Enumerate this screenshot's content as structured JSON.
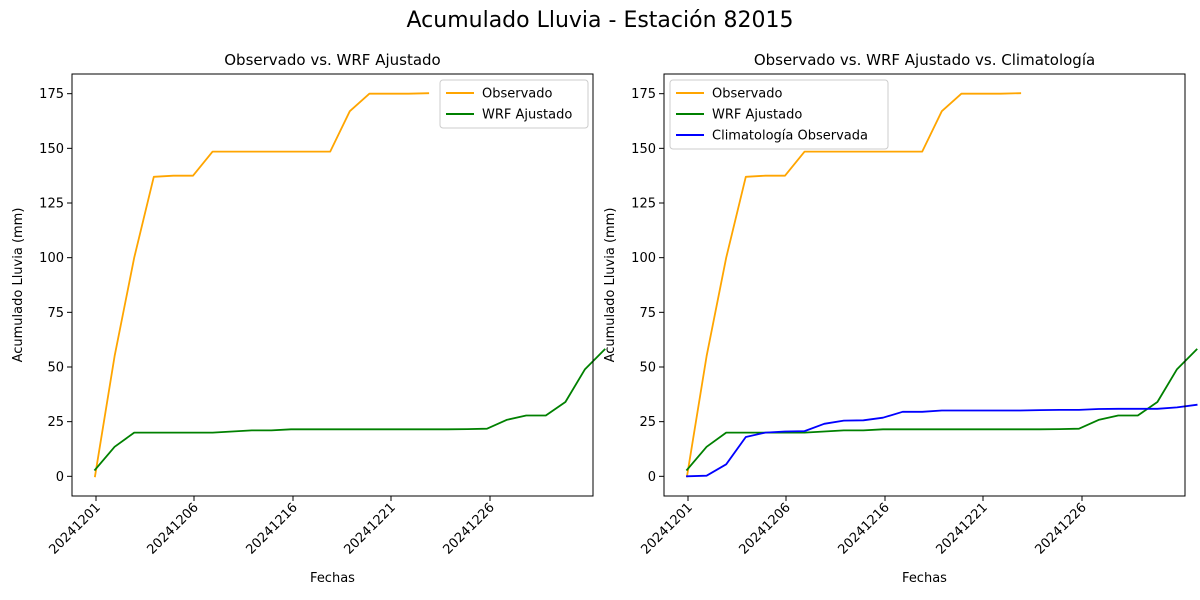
{
  "figure": {
    "title": "Acumulado Lluvia - Estación 82015"
  },
  "colors": {
    "Observado": "#ffa500",
    "WRF Ajustado": "#008000",
    "Climatología Observada": "#0000ff"
  },
  "chart_data": [
    {
      "type": "line",
      "title": "Observado vs. WRF Ajustado",
      "xlabel": "Fechas",
      "ylabel": "Acumulado Lluvia (mm)",
      "x_ticks": [
        "20241201",
        "20241206",
        "20241216",
        "20241221",
        "20241226"
      ],
      "y_ticks": [
        0,
        25,
        50,
        75,
        100,
        125,
        150,
        175
      ],
      "ylim": [
        -9,
        184
      ],
      "legend": "top-right",
      "grid": false,
      "series": [
        {
          "name": "Observado",
          "values": [
            0,
            55,
            100,
            137,
            137.5,
            137.5,
            148.5,
            148.5,
            148.5,
            148.5,
            148.5,
            148.5,
            148.5,
            167,
            175,
            175,
            175,
            175.2
          ]
        },
        {
          "name": "WRF Ajustado",
          "values": [
            3,
            13.5,
            20,
            20,
            20,
            20,
            20,
            20.5,
            21,
            21,
            21.5,
            21.5,
            21.5,
            21.5,
            21.5,
            21.5,
            21.5,
            21.5,
            21.5,
            21.6,
            21.8,
            25.8,
            27.8,
            27.8,
            34,
            49,
            58
          ]
        }
      ]
    },
    {
      "type": "line",
      "title": "Observado vs. WRF Ajustado vs. Climatología",
      "xlabel": "Fechas",
      "ylabel": "Acumulado Lluvia (mm)",
      "x_ticks": [
        "20241201",
        "20241206",
        "20241216",
        "20241221",
        "20241226"
      ],
      "y_ticks": [
        0,
        25,
        50,
        75,
        100,
        125,
        150,
        175
      ],
      "ylim": [
        -9,
        184
      ],
      "legend": "top-left",
      "grid": false,
      "series": [
        {
          "name": "Observado",
          "values": [
            0,
            55,
            100,
            137,
            137.5,
            137.5,
            148.5,
            148.5,
            148.5,
            148.5,
            148.5,
            148.5,
            148.5,
            167,
            175,
            175,
            175,
            175.2
          ]
        },
        {
          "name": "WRF Ajustado",
          "values": [
            3,
            13.5,
            20,
            20,
            20,
            20,
            20,
            20.5,
            21,
            21,
            21.5,
            21.5,
            21.5,
            21.5,
            21.5,
            21.5,
            21.5,
            21.5,
            21.5,
            21.6,
            21.8,
            25.8,
            27.8,
            27.8,
            34,
            49,
            58
          ]
        },
        {
          "name": "Climatología Observada",
          "values": [
            0,
            0.3,
            5.5,
            18,
            20,
            20.5,
            20.7,
            24,
            25.5,
            25.6,
            26.8,
            29.5,
            29.5,
            30.1,
            30.1,
            30.1,
            30.1,
            30.1,
            30.3,
            30.4,
            30.4,
            30.8,
            30.9,
            30.9,
            30.9,
            31.5,
            32.7
          ]
        }
      ]
    }
  ]
}
